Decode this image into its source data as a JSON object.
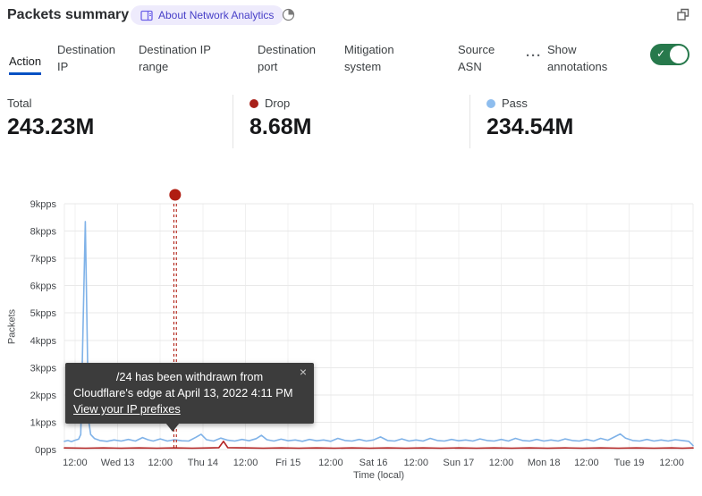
{
  "colors": {
    "active_tab": "#0051c3",
    "toggle_green": "#27794c",
    "badge_bg": "#eeebfc",
    "badge_fg": "#4840c8",
    "tooltip_bg": "#3c3c3c",
    "pass_blue": "#7fb2e8",
    "drop_red": "#b32424",
    "annotation_red": "#b01d12"
  },
  "header": {
    "title": "Packets summary",
    "badge_label": "About Network Analytics"
  },
  "tabs": {
    "items": [
      {
        "label": "Action",
        "active": true
      },
      {
        "label": "Destination IP",
        "active": false
      },
      {
        "label": "Destination IP range",
        "active": false
      },
      {
        "label": "Destination port",
        "active": false
      },
      {
        "label": "Mitigation system",
        "active": false
      },
      {
        "label": "Source ASN",
        "active": false
      }
    ],
    "more_label": "···",
    "show_annotations_label": "Show annotations",
    "annotations_toggle": {
      "state": "on",
      "check_glyph": "✓"
    }
  },
  "stats": {
    "items": [
      {
        "label": "Total",
        "value": "243.23M",
        "dot_color": null
      },
      {
        "label": "Drop",
        "value": "8.68M",
        "dot_color": "#a8201a"
      },
      {
        "label": "Pass",
        "value": "234.54M",
        "dot_color": "#8ebdee"
      }
    ]
  },
  "tooltip": {
    "line1": "/24 has been withdrawn from",
    "line2": "Cloudflare's edge at April 13, 2022 4:11 PM",
    "link_label": "View your IP prefixes",
    "close_glyph": "×"
  },
  "chart_data": {
    "type": "line",
    "title": "Packets summary",
    "xlabel": "Time (local)",
    "ylabel": "Packets",
    "x_unit": "hours since 2022-04-12 00:00 local",
    "xlim": [
      9,
      186
    ],
    "ylim": [
      0,
      9
    ],
    "grid": true,
    "legend_position": "none (stats row above acts as legend)",
    "y_ticks": [
      {
        "v": 0,
        "label": "0pps"
      },
      {
        "v": 1,
        "label": "1kpps"
      },
      {
        "v": 2,
        "label": "2kpps"
      },
      {
        "v": 3,
        "label": "3kpps"
      },
      {
        "v": 4,
        "label": "4kpps"
      },
      {
        "v": 5,
        "label": "5kpps"
      },
      {
        "v": 6,
        "label": "6kpps"
      },
      {
        "v": 7,
        "label": "7kpps"
      },
      {
        "v": 8,
        "label": "8kpps"
      },
      {
        "v": 9,
        "label": "9kpps"
      }
    ],
    "x_ticks": [
      {
        "h": 12,
        "label": "12:00"
      },
      {
        "h": 24,
        "label": "Wed 13"
      },
      {
        "h": 36,
        "label": "12:00"
      },
      {
        "h": 48,
        "label": "Thu 14"
      },
      {
        "h": 60,
        "label": "12:00"
      },
      {
        "h": 72,
        "label": "Fri 15"
      },
      {
        "h": 84,
        "label": "12:00"
      },
      {
        "h": 96,
        "label": "Sat 16"
      },
      {
        "h": 108,
        "label": "12:00"
      },
      {
        "h": 120,
        "label": "Sun 17"
      },
      {
        "h": 132,
        "label": "12:00"
      },
      {
        "h": 144,
        "label": "Mon 18"
      },
      {
        "h": 156,
        "label": "12:00"
      },
      {
        "h": 168,
        "label": "Tue 19"
      },
      {
        "h": 180,
        "label": "12:00"
      }
    ],
    "series": [
      {
        "name": "Pass",
        "color": "#7fb2e8",
        "points": [
          [
            9,
            0.3
          ],
          [
            10,
            0.33
          ],
          [
            11,
            0.29
          ],
          [
            12,
            0.34
          ],
          [
            13,
            0.38
          ],
          [
            13.6,
            0.55
          ],
          [
            14.9,
            8.35
          ],
          [
            15.8,
            1.1
          ],
          [
            16.4,
            0.55
          ],
          [
            17.5,
            0.4
          ],
          [
            19,
            0.33
          ],
          [
            21,
            0.3
          ],
          [
            23,
            0.35
          ],
          [
            25,
            0.31
          ],
          [
            27,
            0.37
          ],
          [
            29,
            0.31
          ],
          [
            31,
            0.44
          ],
          [
            32.5,
            0.36
          ],
          [
            34,
            0.31
          ],
          [
            36,
            0.39
          ],
          [
            38,
            0.31
          ],
          [
            40,
            0.36
          ],
          [
            42,
            0.32
          ],
          [
            44,
            0.31
          ],
          [
            46,
            0.45
          ],
          [
            47.5,
            0.56
          ],
          [
            49,
            0.36
          ],
          [
            51,
            0.31
          ],
          [
            53,
            0.42
          ],
          [
            55,
            0.34
          ],
          [
            57,
            0.31
          ],
          [
            59,
            0.37
          ],
          [
            61,
            0.32
          ],
          [
            63,
            0.4
          ],
          [
            64.5,
            0.52
          ],
          [
            66,
            0.36
          ],
          [
            68,
            0.31
          ],
          [
            70,
            0.38
          ],
          [
            72,
            0.32
          ],
          [
            74,
            0.35
          ],
          [
            76,
            0.3
          ],
          [
            78,
            0.37
          ],
          [
            80,
            0.32
          ],
          [
            82,
            0.35
          ],
          [
            84,
            0.3
          ],
          [
            86,
            0.41
          ],
          [
            88,
            0.33
          ],
          [
            90,
            0.31
          ],
          [
            92,
            0.37
          ],
          [
            94,
            0.31
          ],
          [
            96,
            0.35
          ],
          [
            98,
            0.46
          ],
          [
            100,
            0.33
          ],
          [
            102,
            0.31
          ],
          [
            104,
            0.39
          ],
          [
            106,
            0.31
          ],
          [
            108,
            0.35
          ],
          [
            110,
            0.31
          ],
          [
            112,
            0.41
          ],
          [
            114,
            0.33
          ],
          [
            116,
            0.31
          ],
          [
            118,
            0.37
          ],
          [
            120,
            0.32
          ],
          [
            122,
            0.35
          ],
          [
            124,
            0.31
          ],
          [
            126,
            0.39
          ],
          [
            128,
            0.33
          ],
          [
            130,
            0.31
          ],
          [
            132,
            0.37
          ],
          [
            134,
            0.31
          ],
          [
            136,
            0.41
          ],
          [
            138,
            0.33
          ],
          [
            140,
            0.31
          ],
          [
            142,
            0.37
          ],
          [
            144,
            0.31
          ],
          [
            146,
            0.35
          ],
          [
            148,
            0.31
          ],
          [
            150,
            0.39
          ],
          [
            152,
            0.33
          ],
          [
            154,
            0.31
          ],
          [
            156,
            0.37
          ],
          [
            158,
            0.31
          ],
          [
            160,
            0.41
          ],
          [
            162,
            0.34
          ],
          [
            164,
            0.47
          ],
          [
            165.5,
            0.57
          ],
          [
            167,
            0.42
          ],
          [
            169,
            0.33
          ],
          [
            171,
            0.31
          ],
          [
            173,
            0.37
          ],
          [
            175,
            0.31
          ],
          [
            177,
            0.35
          ],
          [
            179,
            0.31
          ],
          [
            181,
            0.36
          ],
          [
            183,
            0.33
          ],
          [
            184.8,
            0.3
          ],
          [
            185.6,
            0.2
          ],
          [
            186,
            0.14
          ]
        ]
      },
      {
        "name": "Drop",
        "color": "#b32424",
        "points": [
          [
            9,
            0.06
          ],
          [
            15,
            0.05
          ],
          [
            20,
            0.06
          ],
          [
            25,
            0.05
          ],
          [
            30,
            0.06
          ],
          [
            35,
            0.05
          ],
          [
            40,
            0.06
          ],
          [
            45,
            0.05
          ],
          [
            50,
            0.06
          ],
          [
            52.5,
            0.07
          ],
          [
            53.8,
            0.3
          ],
          [
            55,
            0.07
          ],
          [
            60,
            0.06
          ],
          [
            65,
            0.05
          ],
          [
            70,
            0.06
          ],
          [
            75,
            0.05
          ],
          [
            80,
            0.06
          ],
          [
            85,
            0.05
          ],
          [
            90,
            0.06
          ],
          [
            95,
            0.05
          ],
          [
            100,
            0.06
          ],
          [
            105,
            0.05
          ],
          [
            110,
            0.06
          ],
          [
            115,
            0.05
          ],
          [
            120,
            0.06
          ],
          [
            125,
            0.05
          ],
          [
            130,
            0.06
          ],
          [
            135,
            0.05
          ],
          [
            140,
            0.06
          ],
          [
            145,
            0.05
          ],
          [
            150,
            0.06
          ],
          [
            155,
            0.05
          ],
          [
            160,
            0.06
          ],
          [
            165,
            0.05
          ],
          [
            170,
            0.06
          ],
          [
            175,
            0.05
          ],
          [
            180,
            0.06
          ],
          [
            183,
            0.05
          ],
          [
            186,
            0.06
          ]
        ]
      }
    ],
    "annotation": {
      "x_hours": 40.18,
      "time_label": "April 13, 2022 4:11 PM",
      "text": "/24 has been withdrawn from Cloudflare's edge at April 13, 2022 4:11 PM",
      "color": "#b01d12"
    }
  }
}
